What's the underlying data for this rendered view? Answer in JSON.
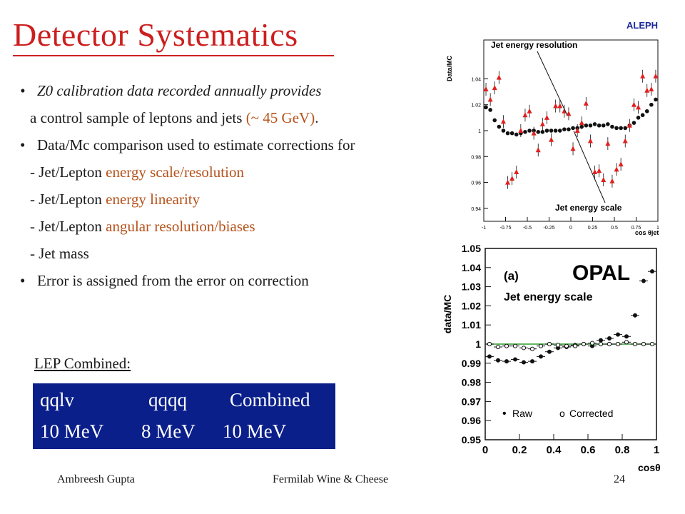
{
  "slide": {
    "title": "Detector Systematics",
    "title_color": "#cc1f1f",
    "accent_color": "#b5521b"
  },
  "bullets": {
    "b1_line1": "Z0 calibration data recorded annually  provides",
    "b1_line2_pre": "a control sample of leptons and jets  ",
    "b1_line2_hl": "(~ 45 GeV)",
    "b1_line2_post": ".",
    "b2": "Data/Mc comparison used to estimate corrections for",
    "sub1_pre": "- Jet/Lepton ",
    "sub1_hl": "energy scale/resolution",
    "sub2_pre": "- Jet/Lepton ",
    "sub2_hl": "energy linearity",
    "sub3_pre": "- Jet/Lepton ",
    "sub3_hl": "angular resolution/biases",
    "sub4": "- Jet mass",
    "b3": "Error is assigned from the error on correction",
    "bullet_glyph": "•"
  },
  "lep": {
    "label": "LEP Combined:",
    "box_color": "#0a1f8a",
    "headers": [
      "qqlv",
      "qqqq",
      "Combined"
    ],
    "values": [
      "10 MeV",
      "8 MeV",
      "10 MeV"
    ]
  },
  "footer": {
    "author": "Ambreesh Gupta",
    "event": "Fermilab Wine & Cheese",
    "page": "24"
  },
  "chart_data": [
    {
      "type": "scatter",
      "experiment_label": "ALEPH",
      "ylabel": "Data/MC",
      "xlabel": "cos θjet",
      "xlim": [
        -1,
        1
      ],
      "ylim": [
        0.93,
        1.07
      ],
      "xticks": [
        "-1",
        "-0.75",
        "-0.5",
        "-0.25",
        "0",
        "0.25",
        "0.5",
        "0.75",
        "1"
      ],
      "yticks": [
        "1.04",
        "1.02",
        "1",
        "0.98",
        "0.96",
        "0.94"
      ],
      "annotations": [
        "Jet energy resolution",
        "Jet energy scale"
      ],
      "series": [
        {
          "color": "#111111",
          "marker": "dot",
          "x": [
            -0.975,
            -0.925,
            -0.875,
            -0.825,
            -0.775,
            -0.725,
            -0.675,
            -0.625,
            -0.575,
            -0.525,
            -0.475,
            -0.425,
            -0.375,
            -0.325,
            -0.275,
            -0.225,
            -0.175,
            -0.125,
            -0.075,
            -0.025,
            0.025,
            0.075,
            0.125,
            0.175,
            0.225,
            0.275,
            0.325,
            0.375,
            0.425,
            0.475,
            0.525,
            0.575,
            0.625,
            0.675,
            0.725,
            0.775,
            0.825,
            0.875,
            0.925,
            0.975
          ],
          "y": [
            1.018,
            1.016,
            1.008,
            1.003,
            1.0,
            0.998,
            0.998,
            0.997,
            0.998,
            0.999,
            1.0,
            1.0,
            0.999,
            0.999,
            1.0,
            1.0,
            1.0,
            1.0,
            1.001,
            1.001,
            1.002,
            1.002,
            1.003,
            1.004,
            1.004,
            1.005,
            1.004,
            1.004,
            1.005,
            1.003,
            1.002,
            1.002,
            1.002,
            1.004,
            1.006,
            1.01,
            1.012,
            1.015,
            1.02,
            1.024
          ]
        },
        {
          "color": "#e02020",
          "marker": "triangle",
          "x": [
            -0.975,
            -0.925,
            -0.875,
            -0.825,
            -0.775,
            -0.725,
            -0.675,
            -0.625,
            -0.575,
            -0.525,
            -0.475,
            -0.425,
            -0.375,
            -0.325,
            -0.275,
            -0.225,
            -0.175,
            -0.125,
            -0.075,
            -0.025,
            0.025,
            0.075,
            0.125,
            0.175,
            0.225,
            0.275,
            0.325,
            0.375,
            0.425,
            0.475,
            0.525,
            0.575,
            0.625,
            0.675,
            0.725,
            0.775,
            0.825,
            0.875,
            0.925,
            0.975
          ],
          "y": [
            1.032,
            1.024,
            1.033,
            1.041,
            1.007,
            0.96,
            0.963,
            0.968,
            1.0,
            1.012,
            1.015,
            0.998,
            0.985,
            1.005,
            1.01,
            0.993,
            1.019,
            1.019,
            1.015,
            1.013,
            0.986,
            1.0,
            1.006,
            1.021,
            0.992,
            0.968,
            0.969,
            0.962,
            0.99,
            0.961,
            0.97,
            0.974,
            0.992,
            1.004,
            1.02,
            1.018,
            1.042,
            1.031,
            1.032,
            1.042
          ]
        }
      ]
    },
    {
      "type": "scatter",
      "panel_label": "(a)",
      "experiment_label": "OPAL",
      "subtitle": "Jet energy scale",
      "ylabel": "data/MC",
      "xlabel": "cosθ",
      "xlim": [
        0,
        1
      ],
      "ylim": [
        0.95,
        1.05
      ],
      "xticks": [
        "0",
        "0.2",
        "0.4",
        "0.6",
        "0.8",
        "1"
      ],
      "yticks": [
        "1.05",
        "1.04",
        "1.03",
        "1.02",
        "1.01",
        "1",
        "0.99",
        "0.98",
        "0.97",
        "0.96",
        "0.95"
      ],
      "reference_line": 1.0,
      "reference_line_color": "#2ca02c",
      "legend_location": "bottom-left",
      "series": [
        {
          "name": "Raw",
          "marker": "filled",
          "x": [
            0.025,
            0.075,
            0.125,
            0.175,
            0.225,
            0.275,
            0.325,
            0.375,
            0.425,
            0.475,
            0.525,
            0.575,
            0.625,
            0.675,
            0.725,
            0.775,
            0.825,
            0.875,
            0.925,
            0.975
          ],
          "y": [
            0.9935,
            0.9915,
            0.991,
            0.992,
            0.9905,
            0.991,
            0.9935,
            0.996,
            0.998,
            0.9985,
            0.9995,
            1.0,
            0.999,
            1.002,
            1.003,
            1.005,
            1.004,
            1.015,
            1.033,
            1.038
          ]
        },
        {
          "name": "Corrected",
          "marker": "open",
          "x": [
            0.025,
            0.075,
            0.125,
            0.175,
            0.225,
            0.275,
            0.325,
            0.375,
            0.425,
            0.475,
            0.525,
            0.575,
            0.625,
            0.675,
            0.725,
            0.775,
            0.825,
            0.875,
            0.925,
            0.975
          ],
          "y": [
            1.0,
            0.9985,
            0.999,
            0.999,
            0.998,
            0.9975,
            0.999,
            1.0,
            0.9995,
            0.999,
            0.999,
            1.0,
            1.0005,
            1.0,
            1.0,
            1.0,
            1.001,
            1.0,
            1.0,
            1.0
          ]
        }
      ],
      "legend_glyphs": [
        "•",
        "o"
      ]
    }
  ]
}
